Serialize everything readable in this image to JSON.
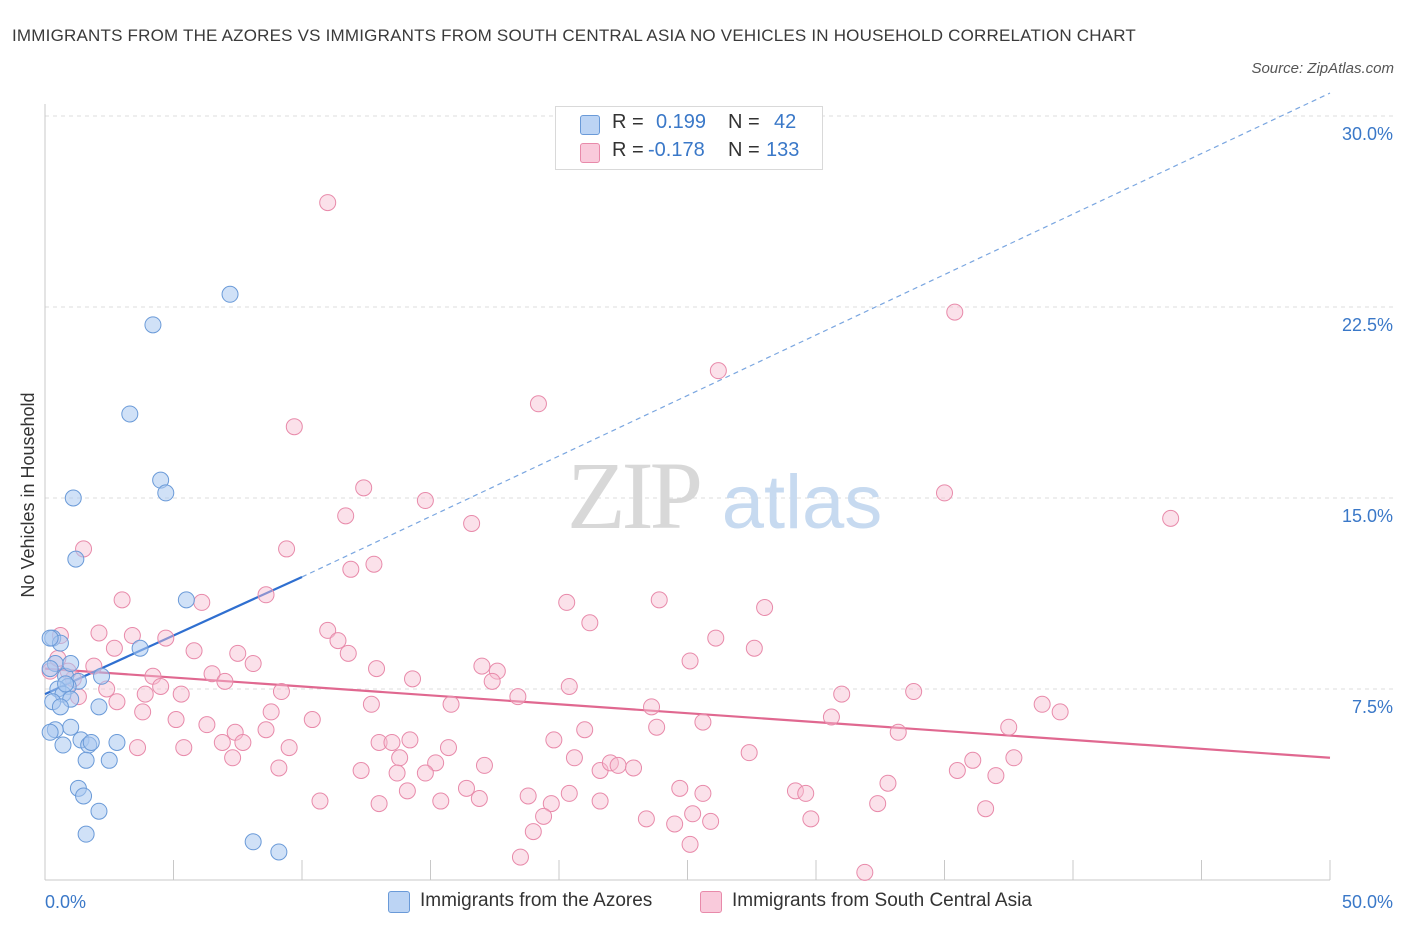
{
  "title": "IMMIGRANTS FROM THE AZORES VS IMMIGRANTS FROM SOUTH CENTRAL ASIA NO VEHICLES IN HOUSEHOLD CORRELATION CHART",
  "source": "Source: ZipAtlas.com",
  "watermark": {
    "zip": "ZIP",
    "atlas": "atlas"
  },
  "legend_top": {
    "r_label": "R =",
    "n_label": "N =",
    "rows": [
      {
        "r": "0.199",
        "n": "42"
      },
      {
        "r": "-0.178",
        "n": "133"
      }
    ]
  },
  "colors": {
    "blue_fill": "#a9c8f0",
    "blue_stroke": "#6a9ad8",
    "blue_line": "#2f6fd0",
    "pink_fill": "#f6bcd0",
    "pink_stroke": "#e88aaa",
    "pink_line": "#e06890",
    "axis_text": "#3a78c8"
  },
  "chart_data": {
    "type": "scatter",
    "title": "IMMIGRANTS FROM THE AZORES VS IMMIGRANTS FROM SOUTH CENTRAL ASIA NO VEHICLES IN HOUSEHOLD CORRELATION CHART",
    "xlabel": "",
    "ylabel": "No Vehicles in Household",
    "xlim": [
      0,
      50
    ],
    "ylim": [
      0,
      30
    ],
    "x_tick_labels": [
      "0.0%",
      "50.0%"
    ],
    "y_tick_labels": [
      "7.5%",
      "15.0%",
      "22.5%",
      "30.0%"
    ],
    "y_ticks": [
      7.5,
      15,
      22.5,
      30
    ],
    "grid": true,
    "legend_position": "bottom",
    "series": [
      {
        "name": "Immigrants from the Azores",
        "r": 0.199,
        "n": 42,
        "trend": {
          "x0": 0,
          "y0": 7.3,
          "x1": 10,
          "y1": 11.9,
          "dashed_to_x": 50,
          "dashed_to_y": 30.9
        },
        "points": [
          [
            0.3,
            9.5
          ],
          [
            0.6,
            9.3
          ],
          [
            0.4,
            8.5
          ],
          [
            0.2,
            8.3
          ],
          [
            0.8,
            8.0
          ],
          [
            1.3,
            7.8
          ],
          [
            2.2,
            8.0
          ],
          [
            0.9,
            7.6
          ],
          [
            0.5,
            7.5
          ],
          [
            0.7,
            7.3
          ],
          [
            0.3,
            7.0
          ],
          [
            1.0,
            7.1
          ],
          [
            2.1,
            6.8
          ],
          [
            0.6,
            6.8
          ],
          [
            1.0,
            6.0
          ],
          [
            0.4,
            5.9
          ],
          [
            0.2,
            5.8
          ],
          [
            1.4,
            5.5
          ],
          [
            0.7,
            5.3
          ],
          [
            1.7,
            5.3
          ],
          [
            2.8,
            5.4
          ],
          [
            1.6,
            4.7
          ],
          [
            2.5,
            4.7
          ],
          [
            1.3,
            3.6
          ],
          [
            1.5,
            3.3
          ],
          [
            2.1,
            2.7
          ],
          [
            1.6,
            1.8
          ],
          [
            1.1,
            15.0
          ],
          [
            1.2,
            12.6
          ],
          [
            3.3,
            18.3
          ],
          [
            4.2,
            21.8
          ],
          [
            7.2,
            23.0
          ],
          [
            4.5,
            15.7
          ],
          [
            4.7,
            15.2
          ],
          [
            5.5,
            11.0
          ],
          [
            3.7,
            9.1
          ],
          [
            8.1,
            1.5
          ],
          [
            9.1,
            1.1
          ],
          [
            0.2,
            9.5
          ],
          [
            1.0,
            8.5
          ],
          [
            0.8,
            7.7
          ],
          [
            1.8,
            5.4
          ]
        ]
      },
      {
        "name": "Immigrants from South Central Asia",
        "r": -0.178,
        "n": 133,
        "trend": {
          "x0": 0,
          "y0": 8.3,
          "x1": 50,
          "y1": 4.8
        },
        "points": [
          [
            11.0,
            26.6
          ],
          [
            35.4,
            22.3
          ],
          [
            26.2,
            20.0
          ],
          [
            19.2,
            18.7
          ],
          [
            9.7,
            17.8
          ],
          [
            12.4,
            15.4
          ],
          [
            14.8,
            14.9
          ],
          [
            35.0,
            15.2
          ],
          [
            43.8,
            14.2
          ],
          [
            16.6,
            14.0
          ],
          [
            11.7,
            14.3
          ],
          [
            1.5,
            13.0
          ],
          [
            9.4,
            13.0
          ],
          [
            12.8,
            12.4
          ],
          [
            11.9,
            12.2
          ],
          [
            3.0,
            11.0
          ],
          [
            6.1,
            10.9
          ],
          [
            8.6,
            11.2
          ],
          [
            20.3,
            10.9
          ],
          [
            23.9,
            11.0
          ],
          [
            28.0,
            10.7
          ],
          [
            21.2,
            10.1
          ],
          [
            0.6,
            9.6
          ],
          [
            2.1,
            9.7
          ],
          [
            3.4,
            9.6
          ],
          [
            4.7,
            9.5
          ],
          [
            11.0,
            9.8
          ],
          [
            11.4,
            9.4
          ],
          [
            26.1,
            9.5
          ],
          [
            27.6,
            9.1
          ],
          [
            2.7,
            9.1
          ],
          [
            5.8,
            9.0
          ],
          [
            7.5,
            8.9
          ],
          [
            11.8,
            8.9
          ],
          [
            8.1,
            8.5
          ],
          [
            12.9,
            8.3
          ],
          [
            17.0,
            8.4
          ],
          [
            17.6,
            8.2
          ],
          [
            25.1,
            8.6
          ],
          [
            1.9,
            8.4
          ],
          [
            4.2,
            8.0
          ],
          [
            6.5,
            8.1
          ],
          [
            7.0,
            7.8
          ],
          [
            14.3,
            7.9
          ],
          [
            17.4,
            7.8
          ],
          [
            20.4,
            7.6
          ],
          [
            2.4,
            7.5
          ],
          [
            3.9,
            7.3
          ],
          [
            5.3,
            7.3
          ],
          [
            9.2,
            7.4
          ],
          [
            15.8,
            6.9
          ],
          [
            38.8,
            6.9
          ],
          [
            39.5,
            6.6
          ],
          [
            1.1,
            7.9
          ],
          [
            3.8,
            6.6
          ],
          [
            4.5,
            7.6
          ],
          [
            8.8,
            6.6
          ],
          [
            10.4,
            6.3
          ],
          [
            30.6,
            6.4
          ],
          [
            6.3,
            6.1
          ],
          [
            7.4,
            5.8
          ],
          [
            8.6,
            5.9
          ],
          [
            21.0,
            5.9
          ],
          [
            23.8,
            6.0
          ],
          [
            37.5,
            6.0
          ],
          [
            5.1,
            6.3
          ],
          [
            7.7,
            5.4
          ],
          [
            9.5,
            5.2
          ],
          [
            13.0,
            5.4
          ],
          [
            13.5,
            5.4
          ],
          [
            14.2,
            5.5
          ],
          [
            15.7,
            5.2
          ],
          [
            19.8,
            5.5
          ],
          [
            25.6,
            6.2
          ],
          [
            33.2,
            5.8
          ],
          [
            5.4,
            5.2
          ],
          [
            7.3,
            4.8
          ],
          [
            9.1,
            4.4
          ],
          [
            13.8,
            4.8
          ],
          [
            15.2,
            4.6
          ],
          [
            17.1,
            4.5
          ],
          [
            20.6,
            4.8
          ],
          [
            21.6,
            4.3
          ],
          [
            22.0,
            4.6
          ],
          [
            22.3,
            4.5
          ],
          [
            22.9,
            4.4
          ],
          [
            12.3,
            4.3
          ],
          [
            13.7,
            4.2
          ],
          [
            14.8,
            4.2
          ],
          [
            35.5,
            4.3
          ],
          [
            36.1,
            4.7
          ],
          [
            37.7,
            4.8
          ],
          [
            37.0,
            4.1
          ],
          [
            32.8,
            3.8
          ],
          [
            16.4,
            3.6
          ],
          [
            14.1,
            3.5
          ],
          [
            18.8,
            3.3
          ],
          [
            20.4,
            3.4
          ],
          [
            24.7,
            3.6
          ],
          [
            25.6,
            3.4
          ],
          [
            29.2,
            3.5
          ],
          [
            29.6,
            3.4
          ],
          [
            10.7,
            3.1
          ],
          [
            13.0,
            3.0
          ],
          [
            15.4,
            3.1
          ],
          [
            16.9,
            3.2
          ],
          [
            19.7,
            3.0
          ],
          [
            21.6,
            3.1
          ],
          [
            32.4,
            3.0
          ],
          [
            36.6,
            2.8
          ],
          [
            19.4,
            2.5
          ],
          [
            23.4,
            2.4
          ],
          [
            25.2,
            2.6
          ],
          [
            25.9,
            2.3
          ],
          [
            29.8,
            2.4
          ],
          [
            19.0,
            1.9
          ],
          [
            24.5,
            2.2
          ],
          [
            25.1,
            1.4
          ],
          [
            18.5,
            0.9
          ],
          [
            31.9,
            0.3
          ],
          [
            0.2,
            8.2
          ],
          [
            0.5,
            8.7
          ],
          [
            1.3,
            7.2
          ],
          [
            0.9,
            8.2
          ],
          [
            3.6,
            5.2
          ],
          [
            2.8,
            7.0
          ],
          [
            6.9,
            5.4
          ],
          [
            18.4,
            7.2
          ],
          [
            23.6,
            6.8
          ],
          [
            27.4,
            5.0
          ],
          [
            31.0,
            7.3
          ],
          [
            33.8,
            7.4
          ],
          [
            12.7,
            6.9
          ]
        ]
      }
    ]
  },
  "bottom_legend": [
    {
      "label": "Immigrants from the Azores"
    },
    {
      "label": "Immigrants from South Central Asia"
    }
  ]
}
